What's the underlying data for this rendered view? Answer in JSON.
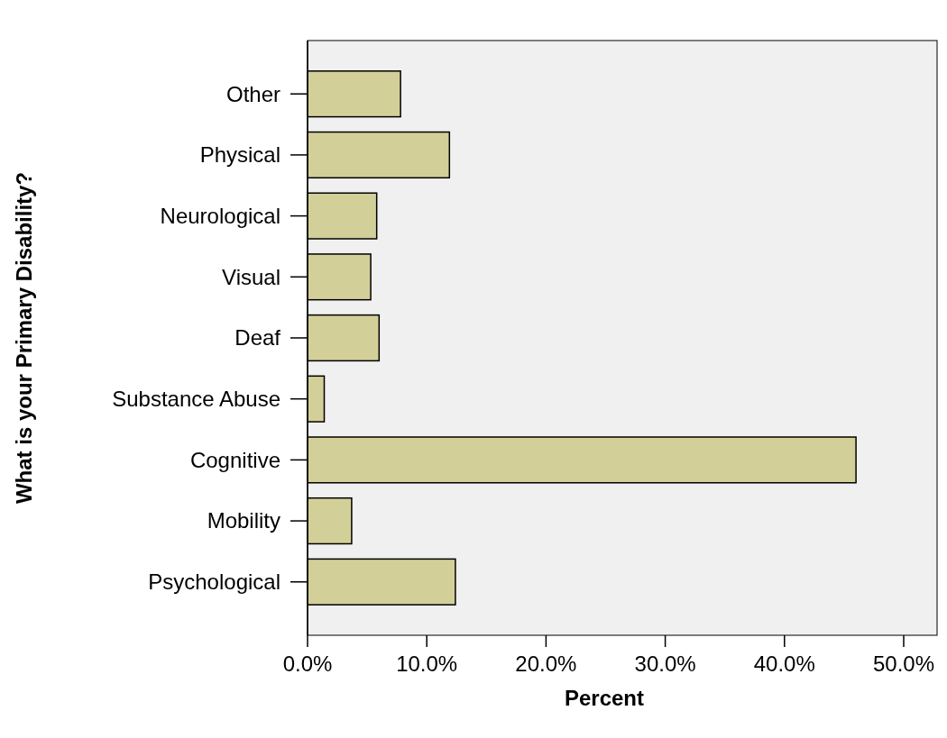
{
  "chart_data": {
    "type": "bar",
    "orientation": "horizontal",
    "xlabel": "Percent",
    "ylabel": "What is your Primary Disability?",
    "categories": [
      "Other",
      "Physical",
      "Neurological",
      "Visual",
      "Deaf",
      "Substance Abuse",
      "Cognitive",
      "Mobility",
      "Psychological"
    ],
    "values": [
      7.8,
      11.9,
      5.8,
      5.3,
      6.0,
      1.4,
      46.0,
      3.7,
      12.4
    ],
    "color": "#d3cf98",
    "xlim": [
      0,
      52.8
    ],
    "xticks": [
      {
        "value": 0,
        "label": "0.0%"
      },
      {
        "value": 10,
        "label": "10.0%"
      },
      {
        "value": 20,
        "label": "20.0%"
      },
      {
        "value": 30,
        "label": "30.0%"
      },
      {
        "value": 40,
        "label": "40.0%"
      },
      {
        "value": 50,
        "label": "50.0%"
      }
    ],
    "grid": false
  }
}
